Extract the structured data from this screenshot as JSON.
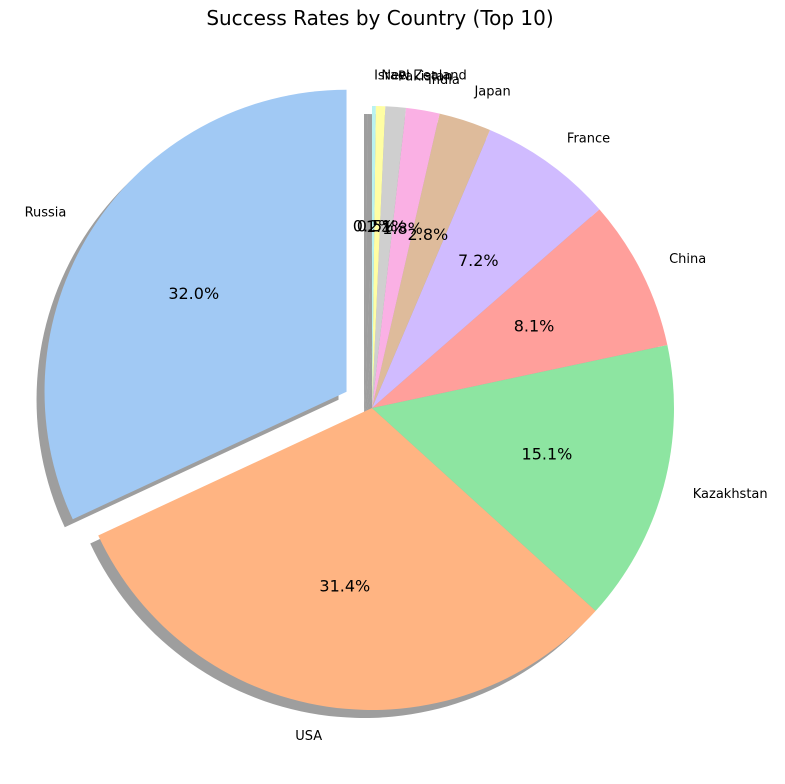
{
  "chart_data": {
    "type": "pie",
    "title": "Success Rates by Country (Top 10)",
    "categories": [
      "Russia",
      "USA",
      "Kazakhstan",
      "China",
      "France",
      "Japan",
      "India",
      "Pakistan",
      "New Zealand",
      "Israel"
    ],
    "values": [
      32.0,
      31.4,
      15.1,
      8.1,
      7.2,
      2.8,
      1.8,
      1.1,
      0.5,
      0.2
    ],
    "value_labels": [
      "32.0%",
      "31.4%",
      "15.1%",
      "8.1%",
      "7.2%",
      "2.8%",
      "1.8%",
      "1.1%",
      "0.5%",
      "0.2%"
    ],
    "colors": [
      "#a1c9f4",
      "#ffb482",
      "#8de5a1",
      "#ff9f9b",
      "#d0bbff",
      "#debb9b",
      "#fab0e4",
      "#cfcfcf",
      "#fffea3",
      "#b9f2f0"
    ],
    "exploded": "Russia",
    "start_angle_deg": 90,
    "direction": "counterclockwise",
    "shadow": true
  }
}
